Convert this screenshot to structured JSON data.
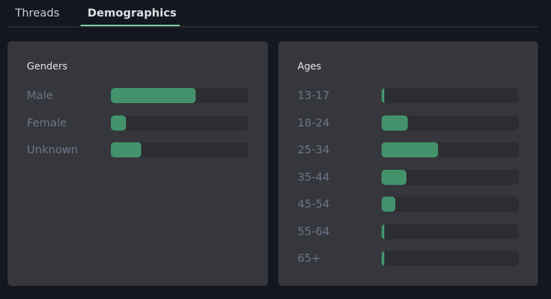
{
  "tabs": [
    {
      "label": "Threads",
      "active": false
    },
    {
      "label": "Demographics",
      "active": true
    }
  ],
  "colors": {
    "accent": "#7fdca9",
    "bar": "#43926b",
    "track": "#2c2d31",
    "panel": "#36373c",
    "background": "#14171f"
  },
  "genders": {
    "title": "Genders",
    "items": [
      {
        "label": "Male",
        "percent": 62
      },
      {
        "label": "Female",
        "percent": 11
      },
      {
        "label": "Unknown",
        "percent": 22
      }
    ]
  },
  "ages": {
    "title": "Ages",
    "items": [
      {
        "label": "13-17",
        "percent": 2
      },
      {
        "label": "18-24",
        "percent": 19
      },
      {
        "label": "25-34",
        "percent": 41
      },
      {
        "label": "35-44",
        "percent": 18
      },
      {
        "label": "45-54",
        "percent": 10
      },
      {
        "label": "55-64",
        "percent": 2
      },
      {
        "label": "65+",
        "percent": 2
      }
    ]
  }
}
